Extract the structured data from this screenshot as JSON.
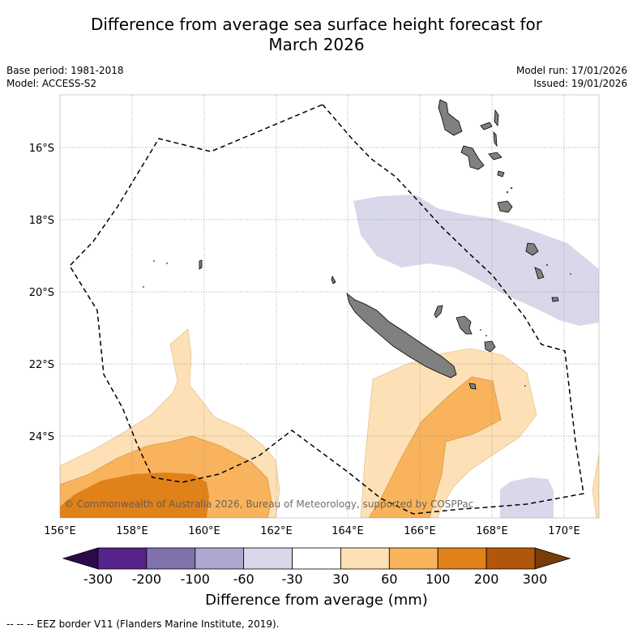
{
  "title_line1": "Difference from average sea surface height forecast for",
  "title_line2": "March 2026",
  "base_period": "Base period: 1981-2018",
  "model": "Model: ACCESS-S2",
  "model_run": "Model run: 17/01/2026",
  "issued": "Issued: 19/01/2026",
  "copyright": "© Commonwealth of Australia 2026, Bureau of Meteorology, supported by COSPPac",
  "lat_labels": [
    "16°S",
    "18°S",
    "20°S",
    "22°S",
    "24°S"
  ],
  "lon_labels": [
    "156°E",
    "158°E",
    "160°E",
    "162°E",
    "164°E",
    "166°E",
    "168°E",
    "170°E"
  ],
  "colorbar": {
    "title": "Difference from average (mm)",
    "ticks": [
      "-300",
      "-200",
      "-100",
      "-60",
      "-30",
      "30",
      "60",
      "100",
      "200",
      "300"
    ],
    "colors": [
      "#56238a",
      "#7f72ad",
      "#aea7d0",
      "#d8d8ea",
      "#ffffff",
      "#fde0b5",
      "#f9b35c",
      "#e0811a",
      "#b0570b"
    ],
    "extend_low_color": "#2d0a4a",
    "extend_high_color": "#7a3c08"
  },
  "footer": "-- -- -- EEZ border V11 (Flanders Marine Institute, 2019).",
  "colors": {
    "land": "#808080",
    "gridline": "#888888",
    "eez_border": "#000000"
  }
}
